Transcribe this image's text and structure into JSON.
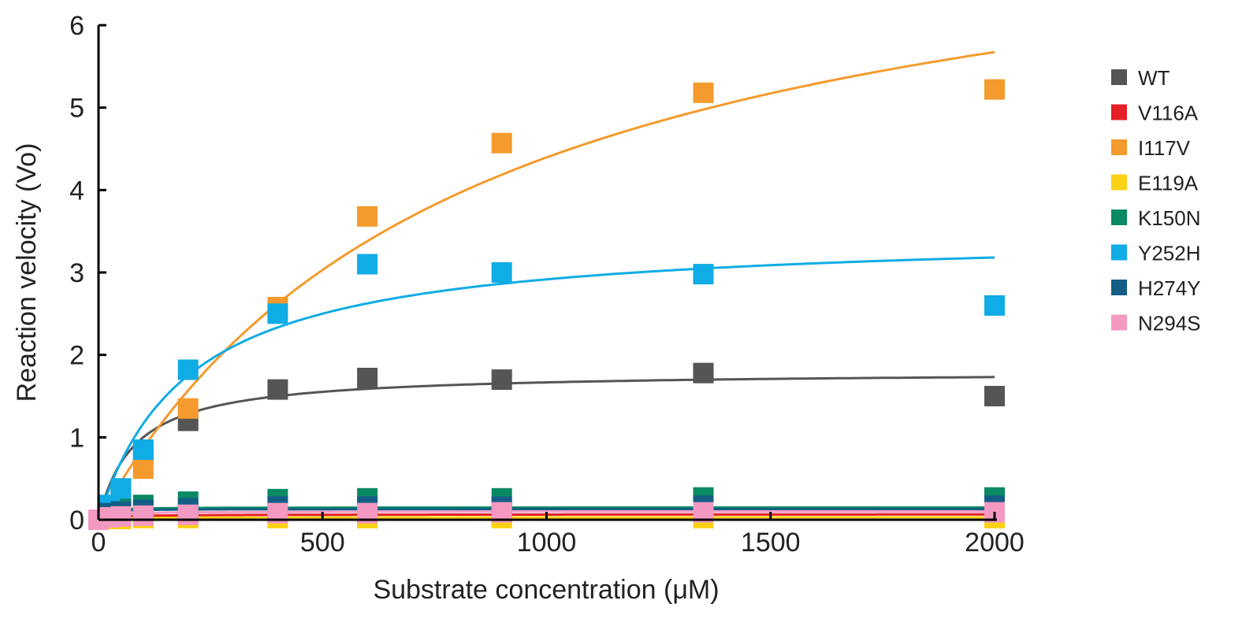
{
  "chart_data": {
    "type": "scatter",
    "title": "",
    "xlabel": "Substrate concentration (μM)",
    "ylabel": "Reaction velocity (Vo)",
    "xlim": [
      0,
      2000
    ],
    "ylim": [
      0,
      6
    ],
    "xticks": [
      0,
      500,
      1000,
      1500,
      2000
    ],
    "xtick_labels": [
      "0",
      "500",
      "1000",
      "1500",
      "2000"
    ],
    "yticks": [
      0,
      1,
      2,
      3,
      4,
      5,
      6
    ],
    "ytick_labels": [
      "0",
      "1",
      "2",
      "3",
      "4",
      "5",
      "6"
    ],
    "grid": false,
    "legend_position": "right",
    "x": [
      0,
      25,
      50,
      100,
      200,
      400,
      600,
      900,
      1350,
      2000
    ],
    "series": [
      {
        "name": "WT",
        "color": "#555555",
        "values": [
          0,
          0.15,
          0.35,
          0.8,
          1.2,
          1.58,
          1.72,
          1.7,
          1.78,
          1.5
        ],
        "fit": {
          "vmax": 1.8,
          "km": 80
        }
      },
      {
        "name": "V116A",
        "color": "#e41f26",
        "values": [
          0,
          0.02,
          0.03,
          0.04,
          0.05,
          0.06,
          0.06,
          0.06,
          0.06,
          0.06
        ],
        "fit": {
          "vmax": 0.065,
          "km": 40
        }
      },
      {
        "name": "I117V",
        "color": "#f59a2c",
        "values": [
          0,
          0.1,
          0.3,
          0.62,
          1.35,
          2.58,
          3.68,
          4.57,
          5.18,
          5.22
        ],
        "fit": {
          "vmax": 8.0,
          "km": 820
        }
      },
      {
        "name": "E119A",
        "color": "#fdd214",
        "values": [
          0,
          0.01,
          0.01,
          0.02,
          0.02,
          0.02,
          0.02,
          0.02,
          0.02,
          0.02
        ],
        "fit": {
          "vmax": 0.03,
          "km": 40
        }
      },
      {
        "name": "K150N",
        "color": "#0a8a64",
        "values": [
          0,
          0.1,
          0.14,
          0.18,
          0.22,
          0.25,
          0.26,
          0.26,
          0.27,
          0.27
        ],
        "fit": {
          "vmax": 0.15,
          "km": 10
        }
      },
      {
        "name": "Y252H",
        "color": "#10ace5",
        "values": [
          0,
          0.18,
          0.38,
          0.85,
          1.82,
          2.5,
          3.1,
          3.0,
          2.98,
          2.6
        ],
        "fit": {
          "vmax": 3.5,
          "km": 200
        }
      },
      {
        "name": "H274Y",
        "color": "#145e86",
        "values": [
          0,
          0.08,
          0.1,
          0.12,
          0.14,
          0.16,
          0.16,
          0.16,
          0.17,
          0.17
        ],
        "fit": {
          "vmax": 0.13,
          "km": 10
        }
      },
      {
        "name": "N294S",
        "color": "#f49ac2",
        "values": [
          0,
          0.03,
          0.04,
          0.05,
          0.06,
          0.08,
          0.08,
          0.09,
          0.09,
          0.09
        ],
        "fit": {
          "vmax": 0.1,
          "km": 25
        }
      }
    ]
  }
}
